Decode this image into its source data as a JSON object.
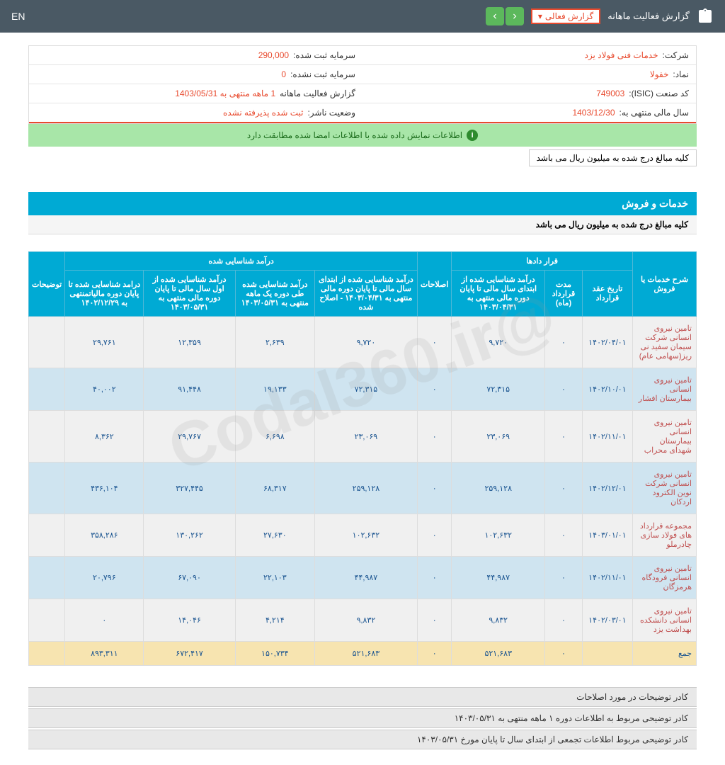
{
  "topbar": {
    "title": "گزارش فعالیت ماهانه",
    "dropdown": "گزارش فعالی",
    "lang": "EN"
  },
  "info": {
    "company_lbl": "شرکت:",
    "company_val": "خدمات فنی فولاد یزد",
    "capital_reg_lbl": "سرمایه ثبت شده:",
    "capital_reg_val": "290,000",
    "symbol_lbl": "نماد:",
    "symbol_val": "خفولا",
    "capital_unreg_lbl": "سرمایه ثبت نشده:",
    "capital_unreg_val": "0",
    "isic_lbl": "کد صنعت (ISIC):",
    "isic_val": "749003",
    "period_lbl": "گزارش فعالیت ماهانه",
    "period_val": "1 ماهه منتهی به 1403/05/31",
    "fy_lbl": "سال مالی منتهی به:",
    "fy_val": "1403/12/30",
    "status_lbl": "وضعیت ناشر:",
    "status_val": "ثبت شده پذیرفته نشده"
  },
  "alert": "اطلاعات نمایش داده شده با اطلاعات امضا شده مطابقت دارد",
  "note": "کلیه مبالغ درج شده به میلیون ریال می باشد",
  "section": {
    "title": "خدمات و فروش",
    "sub": "کلیه مبالغ درج شده به میلیون ریال می باشد"
  },
  "watermark": "@Codal360.ir",
  "headers": {
    "h1": "شرح خدمات یا فروش",
    "g_contracts": "قرار دادها",
    "h2": "تاریخ عقد قرارداد",
    "h3": "مدت قرارداد (ماه)",
    "h4": "درآمد شناسایی شده از ابتدای سال مالی تا پایان دوره مالی منتهی به ۱۴۰۳/۰۴/۳۱",
    "h5": "اصلاحات",
    "g_income": "درآمد شناسایی شده",
    "h6": "درآمد شناسایی شده از ابتدای سال مالی تا پایان دوره مالی منتهی به ۱۴۰۳/۰۴/۳۱ - اصلاح شده",
    "h7": "درآمد شناسایی شده طی دوره یک ماهه منتهی به ۱۴۰۳/۰۵/۳۱",
    "h8": "درآمد شناسایی شده از اول سال مالی تا پایان دوره مالی منتهی به ۱۴۰۳/۰۵/۳۱",
    "h9": "درامد شناسایی شده تا پایان دوره مالیاتمنتهی به ۱۴۰۲/۱۲/۲۹",
    "h10": "توضیحات"
  },
  "rows": [
    {
      "desc": "تامین نیروی انسانی شرکت سیمان سفید نی ریز(سهامی عام)",
      "date": "۱۴۰۲/۰۴/۰۱",
      "dur": "۰",
      "v1": "۹,۷۲۰",
      "adj": "۰",
      "v2": "۹,۷۲۰",
      "v3": "۲,۶۳۹",
      "v4": "۱۲,۳۵۹",
      "v5": "۲۹,۷۶۱"
    },
    {
      "desc": "تامین نیروی انسانی بیمارستان افشار",
      "date": "۱۴۰۲/۱۰/۰۱",
      "dur": "۰",
      "v1": "۷۲,۳۱۵",
      "adj": "۰",
      "v2": "۷۲,۳۱۵",
      "v3": "۱۹,۱۳۳",
      "v4": "۹۱,۴۴۸",
      "v5": "۴۰,۰۰۲"
    },
    {
      "desc": "تامین نیروی انسانی بیمارستان شهدای محراب",
      "date": "۱۴۰۲/۱۱/۰۱",
      "dur": "۰",
      "v1": "۲۳,۰۶۹",
      "adj": "۰",
      "v2": "۲۳,۰۶۹",
      "v3": "۶,۶۹۸",
      "v4": "۲۹,۷۶۷",
      "v5": "۸,۳۶۲"
    },
    {
      "desc": "تامین نیروی انسانی شرکت نوین الکترود اردکان",
      "date": "۱۴۰۲/۱۲/۰۱",
      "dur": "۰",
      "v1": "۲۵۹,۱۲۸",
      "adj": "۰",
      "v2": "۲۵۹,۱۲۸",
      "v3": "۶۸,۳۱۷",
      "v4": "۳۲۷,۴۴۵",
      "v5": "۴۳۶,۱۰۴"
    },
    {
      "desc": "مجموعه قرارداد های فولاد سازی چادرملو",
      "date": "۱۴۰۳/۰۱/۰۱",
      "dur": "۰",
      "v1": "۱۰۲,۶۳۲",
      "adj": "۰",
      "v2": "۱۰۲,۶۳۲",
      "v3": "۲۷,۶۳۰",
      "v4": "۱۳۰,۲۶۲",
      "v5": "۳۵۸,۲۸۶"
    },
    {
      "desc": "تامین نیروی انسانی فرودگاه هرمزگان",
      "date": "۱۴۰۲/۱۱/۰۱",
      "dur": "۰",
      "v1": "۴۴,۹۸۷",
      "adj": "۰",
      "v2": "۴۴,۹۸۷",
      "v3": "۲۲,۱۰۳",
      "v4": "۶۷,۰۹۰",
      "v5": "۲۰,۷۹۶"
    },
    {
      "desc": "تامین نیروی انسانی دانشکده بهداشت یزد",
      "date": "۱۴۰۲/۰۳/۰۱",
      "dur": "۰",
      "v1": "۹,۸۳۲",
      "adj": "۰",
      "v2": "۹,۸۳۲",
      "v3": "۴,۲۱۴",
      "v4": "۱۴,۰۴۶",
      "v5": "۰"
    }
  ],
  "total": {
    "desc": "جمع",
    "dur": "۰",
    "v1": "۵۲۱,۶۸۳",
    "adj": "۰",
    "v2": "۵۲۱,۶۸۳",
    "v3": "۱۵۰,۷۳۴",
    "v4": "۶۷۲,۴۱۷",
    "v5": "۸۹۳,۳۱۱"
  },
  "footer": {
    "n1": "کادر توضیحات در مورد اصلاحات",
    "n2": "کادر توضیحی مربوط به اطلاعات دوره ۱ ماهه منتهی به ۱۴۰۳/۰۵/۳۱",
    "n3": "کادر توضیحی مربوط اطلاعات تجمعی از ابتدای سال تا پایان مورخ ۱۴۰۳/۰۵/۳۱"
  }
}
